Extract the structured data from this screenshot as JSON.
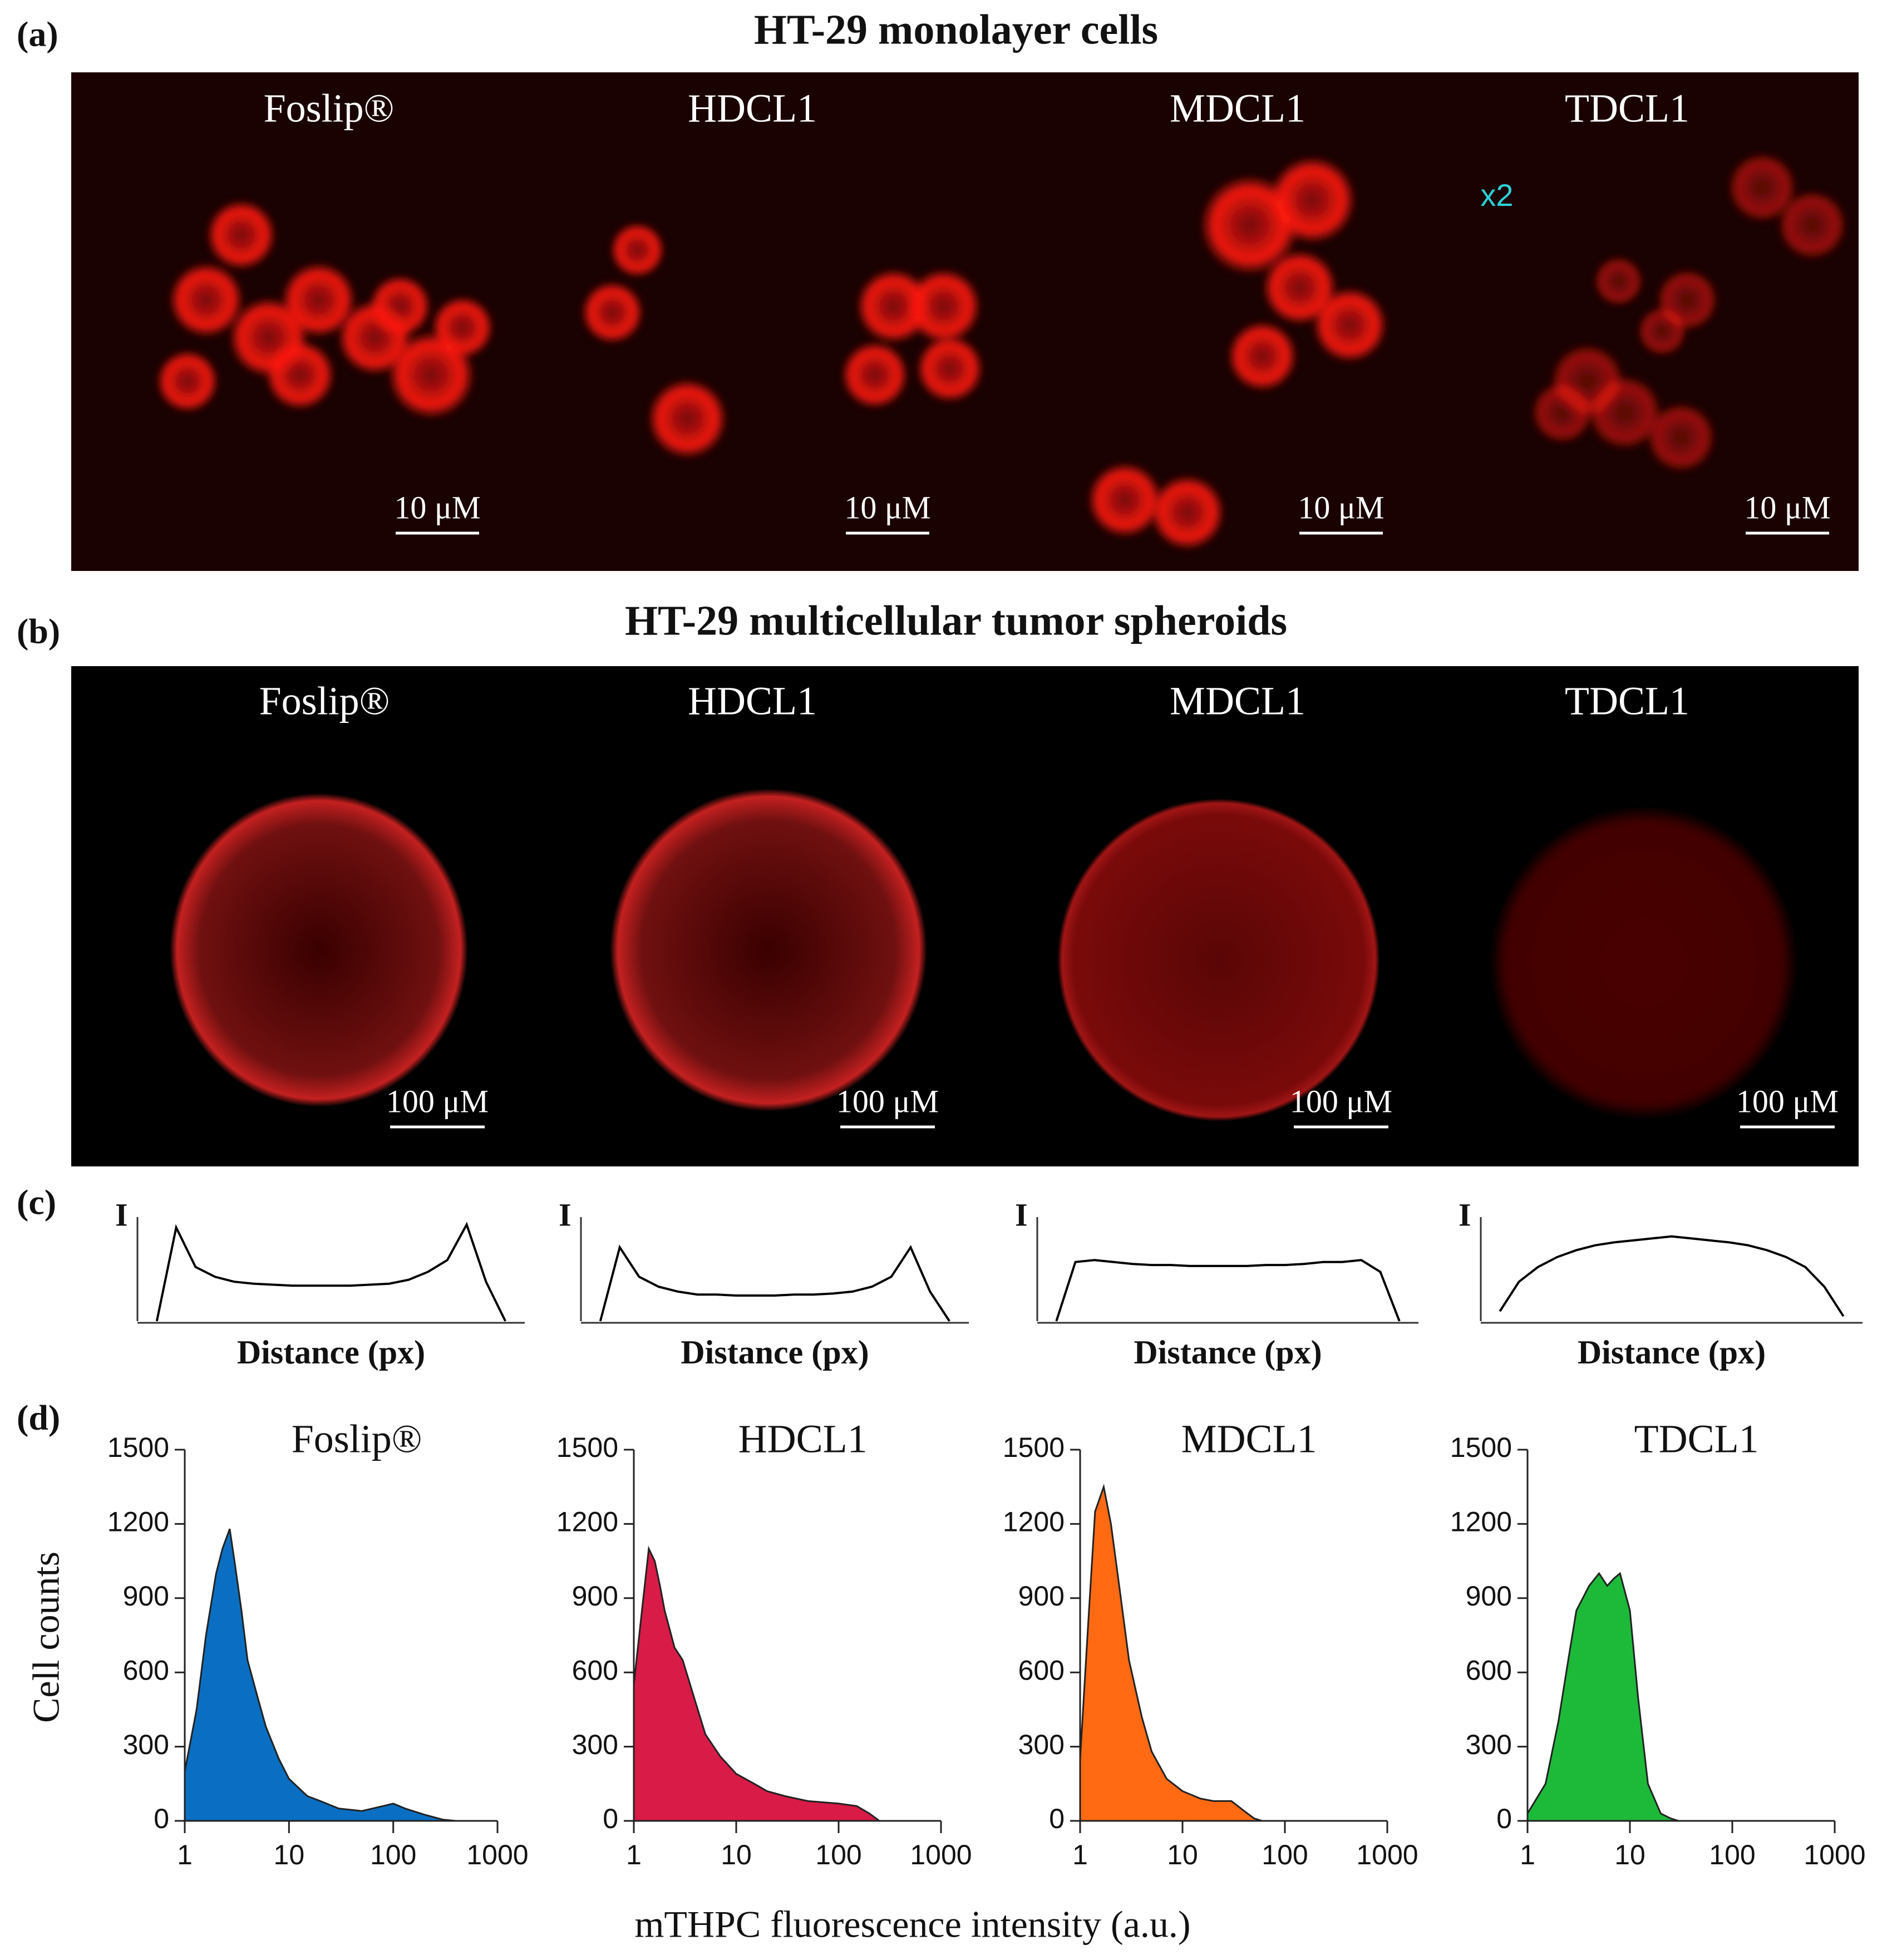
{
  "panel_a": {
    "label": "(a)",
    "title": "HT-29 monolayer cells",
    "magnification": "x2",
    "images": [
      {
        "label": "Foslip®",
        "scale_bar": "10 μM"
      },
      {
        "label": "HDCL1",
        "scale_bar": "10 μM"
      },
      {
        "label": "MDCL1",
        "scale_bar": "10 μM"
      },
      {
        "label": "TDCL1",
        "scale_bar": "10 μM"
      }
    ]
  },
  "panel_b": {
    "label": "(b)",
    "title": "HT-29 multicellular tumor spheroids",
    "images": [
      {
        "label": "Foslip®",
        "scale_bar": "100 μM"
      },
      {
        "label": "HDCL1",
        "scale_bar": "100 μM"
      },
      {
        "label": "MDCL1",
        "scale_bar": "100 μM"
      },
      {
        "label": "TDCL1",
        "scale_bar": "100 μM"
      }
    ]
  },
  "panel_c": {
    "label": "(c)"
  },
  "panel_d": {
    "label": "(d)",
    "ylabel": "Cell counts",
    "xlabel": "mTHPC fluorescence intensity (a.u.)"
  },
  "chart_data": [
    {
      "type": "line",
      "ylabel": "I",
      "xlabel": "Distance (px)",
      "color": "#000000",
      "xlim": [
        0,
        20
      ],
      "ylim": [
        0,
        1
      ],
      "x": [
        1,
        2,
        3,
        4,
        5,
        6,
        7,
        8,
        9,
        10,
        11,
        12,
        13,
        14,
        15,
        16,
        17,
        18,
        19
      ],
      "values": [
        0,
        0.95,
        0.55,
        0.45,
        0.4,
        0.38,
        0.37,
        0.36,
        0.36,
        0.36,
        0.36,
        0.37,
        0.38,
        0.42,
        0.5,
        0.62,
        0.98,
        0.4,
        0
      ]
    },
    {
      "type": "line",
      "ylabel": "I",
      "xlabel": "Distance (px)",
      "color": "#000000",
      "xlim": [
        0,
        20
      ],
      "ylim": [
        0,
        1
      ],
      "x": [
        1,
        2,
        3,
        4,
        5,
        6,
        7,
        8,
        9,
        10,
        11,
        12,
        13,
        14,
        15,
        16,
        17,
        18,
        19
      ],
      "values": [
        0,
        0.75,
        0.45,
        0.35,
        0.3,
        0.27,
        0.27,
        0.26,
        0.26,
        0.26,
        0.27,
        0.27,
        0.28,
        0.3,
        0.35,
        0.45,
        0.75,
        0.3,
        0
      ]
    },
    {
      "type": "line",
      "ylabel": "I",
      "xlabel": "Distance (px)",
      "color": "#000000",
      "xlim": [
        0,
        20
      ],
      "ylim": [
        0,
        1
      ],
      "x": [
        1,
        2,
        3,
        4,
        5,
        6,
        7,
        8,
        9,
        10,
        11,
        12,
        13,
        14,
        15,
        16,
        17,
        18,
        19
      ],
      "values": [
        0,
        0.6,
        0.62,
        0.6,
        0.58,
        0.57,
        0.57,
        0.56,
        0.56,
        0.56,
        0.56,
        0.57,
        0.57,
        0.58,
        0.6,
        0.6,
        0.62,
        0.5,
        0
      ]
    },
    {
      "type": "line",
      "ylabel": "I",
      "xlabel": "Distance (px)",
      "color": "#000000",
      "xlim": [
        0,
        20
      ],
      "ylim": [
        0,
        1
      ],
      "x": [
        1,
        2,
        3,
        4,
        5,
        6,
        7,
        8,
        9,
        10,
        11,
        12,
        13,
        14,
        15,
        16,
        17,
        18,
        19
      ],
      "values": [
        0.1,
        0.4,
        0.55,
        0.65,
        0.72,
        0.77,
        0.8,
        0.82,
        0.84,
        0.86,
        0.84,
        0.82,
        0.8,
        0.77,
        0.72,
        0.65,
        0.55,
        0.35,
        0.05
      ]
    },
    {
      "type": "area",
      "title": "Foslip®",
      "color": "#0a6fc2",
      "xscale": "log",
      "xlim": [
        1,
        1000
      ],
      "ylim": [
        0,
        1500
      ],
      "xticks": [
        1,
        10,
        100,
        1000
      ],
      "yticks": [
        0,
        300,
        600,
        900,
        1200,
        1500
      ],
      "x": [
        1,
        1.3,
        1.6,
        2,
        2.3,
        2.7,
        3,
        3.5,
        4,
        5,
        6,
        8,
        10,
        15,
        20,
        30,
        50,
        80,
        100,
        130,
        200,
        300,
        400
      ],
      "values": [
        200,
        450,
        750,
        1000,
        1100,
        1180,
        1050,
        850,
        650,
        500,
        380,
        250,
        170,
        100,
        80,
        50,
        40,
        60,
        70,
        50,
        25,
        5,
        0
      ]
    },
    {
      "type": "area",
      "title": "HDCL1",
      "color": "#d81b47",
      "xscale": "log",
      "xlim": [
        1,
        1000
      ],
      "ylim": [
        0,
        1500
      ],
      "xticks": [
        1,
        10,
        100,
        1000
      ],
      "yticks": [
        0,
        300,
        600,
        900,
        1200,
        1500
      ],
      "x": [
        1,
        1.2,
        1.4,
        1.6,
        1.8,
        2,
        2.5,
        3,
        4,
        5,
        7,
        10,
        15,
        20,
        30,
        50,
        100,
        150,
        200,
        250
      ],
      "values": [
        550,
        850,
        1100,
        1050,
        950,
        850,
        700,
        650,
        480,
        350,
        260,
        190,
        150,
        120,
        100,
        80,
        70,
        60,
        30,
        0
      ]
    },
    {
      "type": "area",
      "title": "MDCL1",
      "color": "#ff6a13",
      "xscale": "log",
      "xlim": [
        1,
        1000
      ],
      "ylim": [
        0,
        1500
      ],
      "xticks": [
        1,
        10,
        100,
        1000
      ],
      "yticks": [
        0,
        300,
        600,
        900,
        1200,
        1500
      ],
      "x": [
        1,
        1.2,
        1.4,
        1.7,
        2,
        2.5,
        3,
        4,
        5,
        7,
        10,
        15,
        20,
        30,
        40,
        50,
        60
      ],
      "values": [
        250,
        800,
        1250,
        1350,
        1200,
        900,
        650,
        420,
        280,
        170,
        120,
        90,
        80,
        80,
        40,
        10,
        0
      ]
    },
    {
      "type": "area",
      "title": "TDCL1",
      "color": "#1dba3a",
      "xscale": "log",
      "xlim": [
        1,
        1000
      ],
      "ylim": [
        0,
        1500
      ],
      "xticks": [
        1,
        10,
        100,
        1000
      ],
      "yticks": [
        0,
        300,
        600,
        900,
        1200,
        1500
      ],
      "x": [
        1,
        1.5,
        2,
        2.5,
        3,
        4,
        5,
        6,
        7,
        8,
        10,
        12,
        15,
        20,
        25,
        30
      ],
      "values": [
        30,
        150,
        400,
        650,
        850,
        950,
        1000,
        950,
        980,
        1000,
        850,
        500,
        150,
        30,
        10,
        0
      ]
    }
  ]
}
